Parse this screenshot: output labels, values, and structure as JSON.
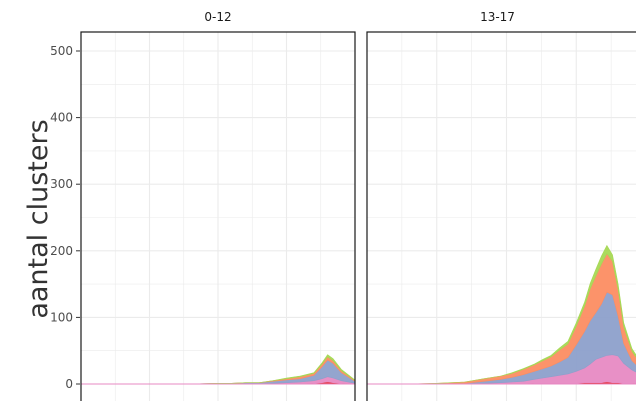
{
  "chart_data": {
    "type": "area",
    "ylabel": "aantal clusters",
    "xlabel": "",
    "ylim": [
      0,
      530
    ],
    "y_ticks": [
      0,
      100,
      200,
      300,
      400,
      500
    ],
    "x_domain": [
      0,
      100
    ],
    "grid": true,
    "colors": {
      "orange": "#fc8d62",
      "blue": "#8da0cb",
      "pink": "#e78ac3",
      "green": "#a6d854",
      "red": "#e41a1c",
      "panel_border": "#1a1a1a",
      "grid": "#ebebeb"
    },
    "panels": [
      {
        "title": "0-12",
        "x": [
          0,
          30,
          40,
          50,
          55,
          60,
          65,
          70,
          75,
          80,
          85,
          88,
          90,
          92,
          95,
          100
        ],
        "series": [
          {
            "color": "red",
            "values": [
              0,
              0,
              0,
              0,
              0,
              0,
              0,
              0,
              0,
              0,
              1,
              2,
              3,
              2,
              1,
              0
            ]
          },
          {
            "color": "pink",
            "values": [
              0,
              0,
              0,
              0,
              0,
              0,
              0,
              1,
              2,
              3,
              4,
              6,
              8,
              7,
              4,
              1
            ]
          },
          {
            "color": "blue",
            "values": [
              0,
              0,
              0,
              1,
              1,
              2,
              2,
              3,
              4,
              5,
              8,
              18,
              25,
              22,
              12,
              3
            ]
          },
          {
            "color": "orange",
            "values": [
              0,
              0,
              0,
              0,
              0,
              0,
              0,
              1,
              2,
              3,
              3,
              4,
              5,
              4,
              3,
              1
            ]
          },
          {
            "color": "green",
            "values": [
              0,
              0,
              0,
              0,
              0,
              0,
              0,
              0,
              1,
              1,
              1,
              2,
              3,
              3,
              2,
              1
            ]
          }
        ]
      },
      {
        "title": "13-17",
        "x": [
          0,
          15,
          25,
          35,
          42,
          48,
          52,
          56,
          60,
          63,
          66,
          69,
          72,
          75,
          78,
          80,
          82,
          84,
          86,
          88,
          90,
          92,
          95,
          100
        ],
        "series": [
          {
            "color": "red",
            "values": [
              0,
              0,
              0,
              0,
              0,
              0,
              0,
              0,
              1,
              1,
              1,
              1,
              1,
              1,
              2,
              2,
              2,
              2,
              3,
              2,
              2,
              1,
              1,
              0
            ]
          },
          {
            "color": "pink",
            "values": [
              0,
              0,
              0,
              0,
              1,
              2,
              3,
              4,
              6,
              8,
              10,
              12,
              14,
              18,
              22,
              28,
              35,
              38,
              40,
              42,
              40,
              30,
              20,
              10
            ]
          },
          {
            "color": "blue",
            "values": [
              0,
              0,
              0,
              1,
              3,
              5,
              7,
              10,
              12,
              14,
              16,
              20,
              25,
              40,
              55,
              65,
              70,
              80,
              95,
              90,
              60,
              30,
              14,
              5
            ]
          },
          {
            "color": "orange",
            "values": [
              0,
              0,
              1,
              2,
              4,
              5,
              6,
              8,
              10,
              12,
              14,
              18,
              20,
              28,
              38,
              48,
              55,
              60,
              58,
              50,
              40,
              25,
              14,
              4
            ]
          },
          {
            "color": "green",
            "values": [
              0,
              0,
              0,
              0,
              0,
              0,
              1,
              1,
              1,
              2,
              2,
              3,
              4,
              5,
              6,
              8,
              10,
              12,
              12,
              10,
              8,
              6,
              4,
              2
            ]
          }
        ]
      }
    ]
  }
}
